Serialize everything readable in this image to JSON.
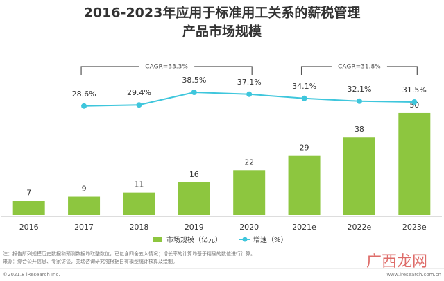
{
  "chart_data": {
    "type": "bar-line",
    "title": "2016-2023年应用于标准用工关系的薪税管理",
    "subtitle": "产品市场规模",
    "categories": [
      "2016",
      "2017",
      "2018",
      "2019",
      "2020",
      "2021e",
      "2022e",
      "2023e"
    ],
    "series": [
      {
        "name": "市场规模（亿元）",
        "type": "bar",
        "color": "#8dc63f",
        "values": [
          7,
          9,
          11,
          16,
          22,
          29,
          38,
          50
        ]
      },
      {
        "name": "增速（%）",
        "type": "line",
        "axis": "y2",
        "color": "#3ec6dc",
        "values": [
          null,
          28.6,
          29.4,
          38.5,
          37.1,
          34.1,
          32.1,
          31.5
        ],
        "value_labels": [
          null,
          "28.6%",
          "29.4%",
          "38.5%",
          "37.1%",
          "34.1%",
          "32.1%",
          "31.5%"
        ]
      }
    ],
    "ylim": [
      0,
      85
    ],
    "y2lim": [
      -50,
      75
    ],
    "annotations": [
      "CAGR=33.3%",
      "CAGR=31.8%"
    ],
    "notes": [
      "注：报告所列规模历史数据和预测数据均取整数位，已包含四舍五入情况；增长率的计算均基于精确的数值进行计算。",
      "来源：综合公开信息、专家访谈，艾瑞咨询研究院根据自有模型统计核算及绘制。"
    ],
    "copyright": "©2021.8 iResearch Inc.",
    "website": "www.iresearch.com.cn",
    "watermark": "广西龙网"
  }
}
